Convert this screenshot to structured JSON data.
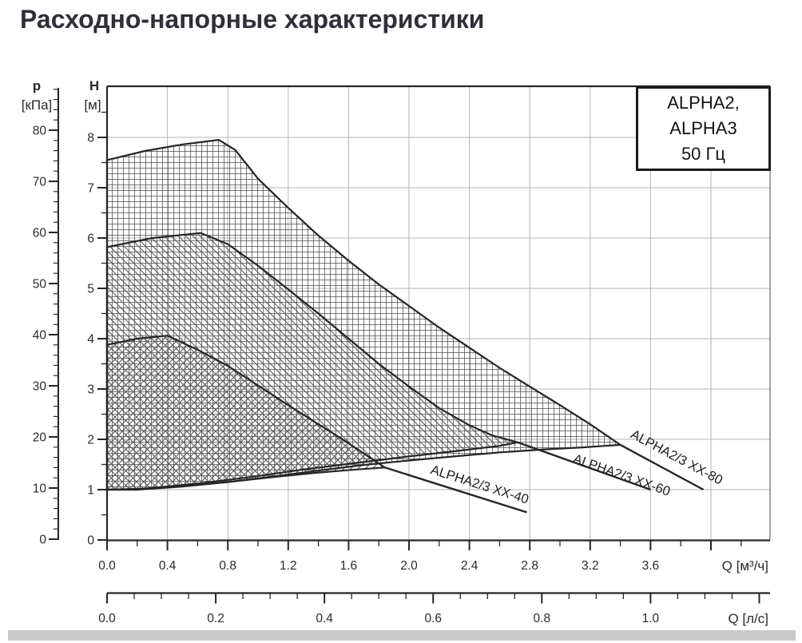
{
  "title": "Расходно-напорные характеристики",
  "legend": {
    "line1": "ALPHA2,",
    "line2": "ALPHA3",
    "line3": "50 Гц"
  },
  "colors": {
    "curve": "#262626",
    "grid_line": "#b4b4b4",
    "plot_right_border": "#777777",
    "text": "#2a2a2a",
    "title": "#2f2f38",
    "hatch": "#555555",
    "footer_bar": "#c9c9c9",
    "legend_border": "#1a1a1a"
  },
  "chart_data": {
    "type": "area",
    "description": "Pump flow-head duty ranges for ALPHA2/ALPHA3 circulator pumps, 50 Hz",
    "x_axis_m3h": {
      "unit_label": "Q [м³/ч]",
      "min": 0,
      "max": 4.2,
      "minor_step": 0.2,
      "major_step": 0.4,
      "max_labeled": 3.6
    },
    "x_axis_ls": {
      "unit_label": "Q [л/с]",
      "min": 0,
      "max": 1.2,
      "minor_step": 0.05,
      "major_step": 0.2,
      "max_labeled": 1.0
    },
    "y_axis_head": {
      "name": "H",
      "unit": "[м]",
      "min": 0,
      "max": 8.5,
      "minor_step": 0.5,
      "major_step": 1,
      "max_labeled": 8
    },
    "y_axis_pressure": {
      "name": "p",
      "unit": "[кПа]",
      "min": 0,
      "max": 88,
      "minor_step": 2,
      "major_step": 10,
      "max_labeled": 80
    },
    "grid": {
      "h_lines": [
        1,
        2,
        3,
        4,
        5,
        6,
        7,
        8
      ],
      "v_step_m3h": 0.4
    },
    "legend_note": "ALPHA2, ALPHA3 50 Гц",
    "series": [
      {
        "id": "xx-80",
        "name": "ALPHA2/3 XX-80",
        "hatch": "grid",
        "white_fill": true,
        "top": [
          [
            0,
            7.55
          ],
          [
            0.25,
            7.73
          ],
          [
            0.5,
            7.86
          ],
          [
            0.74,
            7.95
          ],
          [
            0.85,
            7.75
          ],
          [
            1.0,
            7.18
          ],
          [
            1.2,
            6.6
          ],
          [
            1.4,
            6.05
          ],
          [
            1.6,
            5.55
          ],
          [
            1.8,
            5.08
          ],
          [
            2.0,
            4.65
          ],
          [
            2.2,
            4.22
          ],
          [
            2.4,
            3.82
          ],
          [
            2.6,
            3.42
          ],
          [
            2.8,
            3.05
          ],
          [
            3.0,
            2.68
          ],
          [
            3.2,
            2.3
          ],
          [
            3.4,
            1.89
          ]
        ],
        "bottom": [
          [
            0,
            1.0
          ],
          [
            0.2,
            1.0
          ],
          [
            0.5,
            1.06
          ],
          [
            0.8,
            1.15
          ],
          [
            1.1,
            1.26
          ],
          [
            1.4,
            1.38
          ],
          [
            1.7,
            1.49
          ],
          [
            2.0,
            1.58
          ],
          [
            2.3,
            1.66
          ],
          [
            2.6,
            1.74
          ],
          [
            2.9,
            1.8
          ],
          [
            3.15,
            1.84
          ],
          [
            3.4,
            1.89
          ]
        ],
        "tail": [
          [
            3.4,
            1.89
          ],
          [
            3.95,
            1.0
          ]
        ],
        "label": {
          "q": 3.76,
          "h": 1.57,
          "angle": 28
        }
      },
      {
        "id": "xx-60",
        "name": "ALPHA2/3 XX-60",
        "hatch": "backslash",
        "white_fill": true,
        "top": [
          [
            0,
            5.82
          ],
          [
            0.3,
            6.0
          ],
          [
            0.62,
            6.1
          ],
          [
            0.8,
            5.88
          ],
          [
            1.0,
            5.45
          ],
          [
            1.2,
            4.98
          ],
          [
            1.4,
            4.5
          ],
          [
            1.6,
            4.0
          ],
          [
            1.8,
            3.5
          ],
          [
            2.0,
            3.05
          ],
          [
            2.2,
            2.62
          ],
          [
            2.4,
            2.28
          ],
          [
            2.55,
            2.08
          ],
          [
            2.72,
            1.94
          ]
        ],
        "bottom": [
          [
            0,
            1.0
          ],
          [
            0.25,
            1.02
          ],
          [
            0.6,
            1.12
          ],
          [
            0.95,
            1.25
          ],
          [
            1.3,
            1.4
          ],
          [
            1.65,
            1.53
          ],
          [
            2.0,
            1.66
          ],
          [
            2.35,
            1.78
          ],
          [
            2.6,
            1.87
          ],
          [
            2.72,
            1.94
          ]
        ],
        "tail": [
          [
            2.72,
            1.94
          ],
          [
            3.6,
            1.0
          ]
        ],
        "label": {
          "q": 3.4,
          "h": 1.21,
          "angle": 19.5
        }
      },
      {
        "id": "xx-40",
        "name": "ALPHA2/3 XX-40",
        "hatch": "slash",
        "white_fill": false,
        "top": [
          [
            0,
            3.88
          ],
          [
            0.2,
            4.0
          ],
          [
            0.4,
            4.06
          ],
          [
            0.6,
            3.78
          ],
          [
            0.8,
            3.46
          ],
          [
            1.0,
            3.07
          ],
          [
            1.2,
            2.68
          ],
          [
            1.4,
            2.3
          ],
          [
            1.55,
            2.02
          ],
          [
            1.7,
            1.72
          ],
          [
            1.84,
            1.44
          ]
        ],
        "bottom": [
          [
            0,
            1.0
          ],
          [
            0.2,
            1.0
          ],
          [
            0.5,
            1.07
          ],
          [
            0.8,
            1.15
          ],
          [
            1.1,
            1.25
          ],
          [
            1.4,
            1.34
          ],
          [
            1.65,
            1.4
          ],
          [
            1.84,
            1.44
          ]
        ],
        "tail": [
          [
            1.84,
            1.44
          ],
          [
            2.78,
            0.55
          ]
        ],
        "label": {
          "q": 2.46,
          "h": 1.02,
          "angle": 17.5
        }
      }
    ]
  }
}
